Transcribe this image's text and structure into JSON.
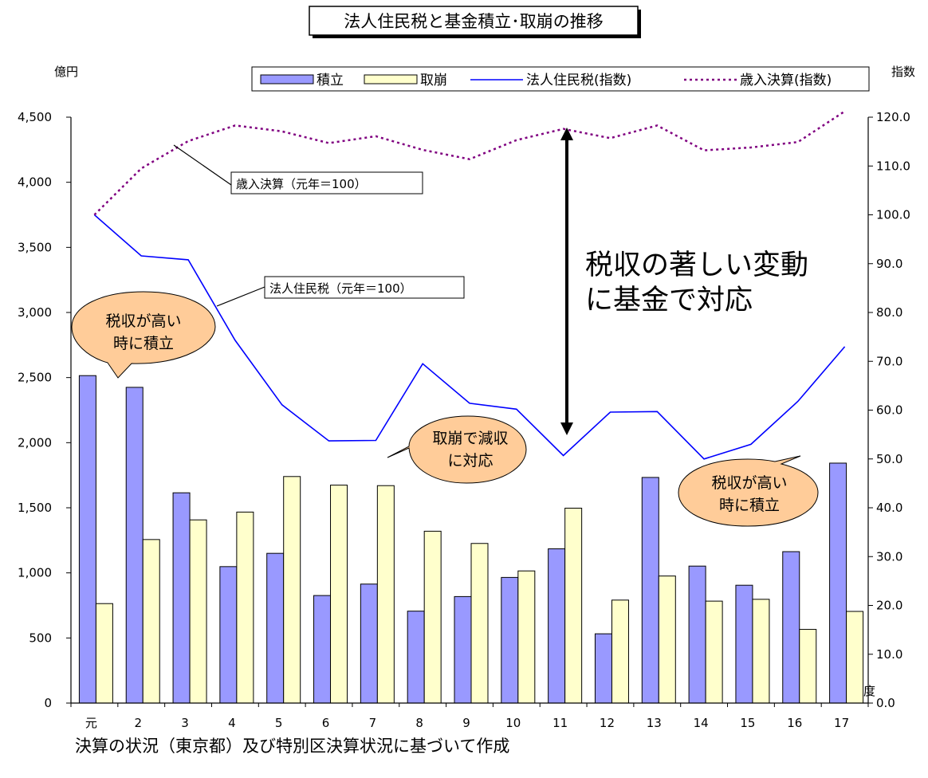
{
  "chart_data": {
    "type": "bar",
    "title": "法人住民税と基金積立･取崩の推移",
    "ylabel": "億円",
    "y2label": "指数",
    "xlabel": "年度",
    "categories": [
      "元",
      "2",
      "3",
      "4",
      "5",
      "6",
      "7",
      "8",
      "9",
      "10",
      "11",
      "12",
      "13",
      "14",
      "15",
      "16",
      "17"
    ],
    "ylim": [
      0,
      4500
    ],
    "y2lim": [
      0,
      120
    ],
    "yticks": [
      "0",
      "500",
      "1,000",
      "1,500",
      "2,000",
      "2,500",
      "3,000",
      "3,500",
      "4,000",
      "4,500"
    ],
    "y2ticks": [
      "0.0",
      "10.0",
      "20.0",
      "30.0",
      "40.0",
      "50.0",
      "60.0",
      "70.0",
      "80.0",
      "90.0",
      "100.0",
      "110.0",
      "120.0"
    ],
    "legend_position": "top-right",
    "series": [
      {
        "name": "積立",
        "kind": "bar",
        "axis": "left",
        "color": "#9999FF",
        "values": [
          2515,
          2425,
          1615,
          1048,
          1150,
          826,
          914,
          706,
          818,
          965,
          1185,
          532,
          1733,
          1052,
          905,
          1163,
          1843
        ]
      },
      {
        "name": "取崩",
        "kind": "bar",
        "axis": "left",
        "color": "#FFFFCC",
        "values": [
          764,
          1256,
          1407,
          1467,
          1740,
          1674,
          1670,
          1320,
          1226,
          1015,
          1497,
          791,
          976,
          783,
          797,
          566,
          704
        ]
      },
      {
        "name": "法人住民税(指数)",
        "kind": "line",
        "axis": "right",
        "color": "#0000FF",
        "dash": "solid",
        "values": [
          100.0,
          91.6,
          90.8,
          74.3,
          61.1,
          53.7,
          53.8,
          69.5,
          61.4,
          60.2,
          50.7,
          59.6,
          59.7,
          50.0,
          53.0,
          61.8,
          73.0
        ]
      },
      {
        "name": "歳入決算(指数)",
        "kind": "line",
        "axis": "right",
        "color": "#800080",
        "dash": "dotted",
        "values": [
          100.0,
          109.5,
          115.1,
          118.3,
          117.1,
          114.7,
          116.1,
          113.3,
          111.4,
          115.3,
          117.6,
          115.7,
          118.3,
          113.2,
          113.8,
          114.9,
          121.2
        ]
      }
    ],
    "annotations": {
      "bigtext_line1": "税収の著しい変動",
      "bigtext_line2": "に基金で対応",
      "label_revenue": "歳入決算（元年＝100）",
      "label_tax": "法人住民税（元年＝100）",
      "bubble1_line1": "税収が高い",
      "bubble1_line2": "時に積立",
      "bubble2_line1": "取崩で減収",
      "bubble2_line2": "に対応",
      "bubble3_line1": "税収が高い",
      "bubble3_line2": "時に積立"
    },
    "source": "決算の状況（東京都）及び特別区決算状況に基づいて作成"
  }
}
